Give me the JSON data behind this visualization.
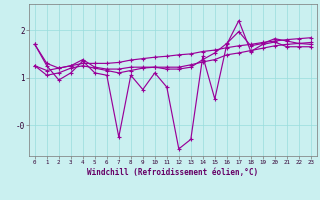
{
  "xlabel": "Windchill (Refroidissement éolien,°C)",
  "background_color": "#caf0f0",
  "line_color": "#990099",
  "grid_color": "#99dddd",
  "x_values": [
    0,
    1,
    2,
    3,
    4,
    5,
    6,
    7,
    8,
    9,
    10,
    11,
    12,
    13,
    14,
    15,
    16,
    17,
    18,
    19,
    20,
    21,
    22,
    23
  ],
  "series1": [
    1.7,
    1.25,
    0.95,
    1.1,
    1.35,
    1.1,
    1.05,
    -0.25,
    1.05,
    0.75,
    1.1,
    0.8,
    -0.5,
    -0.3,
    1.45,
    0.55,
    1.7,
    2.2,
    1.55,
    1.7,
    1.75,
    1.65,
    1.65,
    1.65
  ],
  "series2": [
    1.25,
    1.05,
    1.1,
    1.2,
    1.25,
    1.2,
    1.15,
    1.1,
    1.15,
    1.2,
    1.22,
    1.22,
    1.22,
    1.27,
    1.33,
    1.38,
    1.48,
    1.52,
    1.57,
    1.62,
    1.67,
    1.7,
    1.72,
    1.74
  ],
  "series3": [
    1.25,
    1.15,
    1.2,
    1.25,
    1.3,
    1.3,
    1.3,
    1.32,
    1.37,
    1.4,
    1.43,
    1.45,
    1.48,
    1.5,
    1.55,
    1.58,
    1.63,
    1.67,
    1.7,
    1.74,
    1.77,
    1.8,
    1.82,
    1.84
  ],
  "series4": [
    1.7,
    1.3,
    1.2,
    1.25,
    1.38,
    1.22,
    1.18,
    1.18,
    1.22,
    1.22,
    1.22,
    1.18,
    1.18,
    1.22,
    1.38,
    1.52,
    1.72,
    1.97,
    1.67,
    1.72,
    1.82,
    1.77,
    1.72,
    1.7
  ],
  "ylim": [
    -0.65,
    2.55
  ],
  "xlim": [
    -0.5,
    23.5
  ]
}
